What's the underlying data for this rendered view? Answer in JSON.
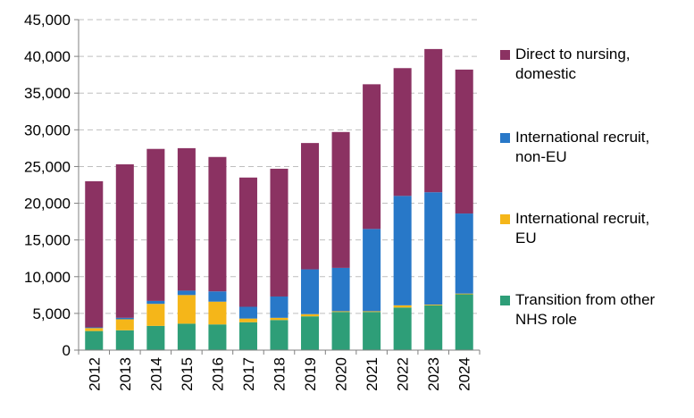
{
  "chart_data": {
    "type": "bar",
    "stacked": true,
    "categories": [
      "2012",
      "2013",
      "2014",
      "2015",
      "2016",
      "2017",
      "2018",
      "2019",
      "2020",
      "2021",
      "2022",
      "2023",
      "2024"
    ],
    "ylim": [
      0,
      45000
    ],
    "yticks": [
      "0",
      "5,000",
      "10,000",
      "15,000",
      "20,000",
      "25,000",
      "30,000",
      "35,000",
      "40,000",
      "45,000"
    ],
    "grid": "horizontal dashed",
    "legend_position": "right",
    "series": [
      {
        "name": "Transition from other NHS role",
        "color": "#2e9e78",
        "values": [
          2600,
          2700,
          3300,
          3600,
          3500,
          3800,
          4100,
          4600,
          5200,
          5200,
          5800,
          6100,
          7600
        ]
      },
      {
        "name": "International recruit, EU",
        "color": "#f5b619",
        "values": [
          400,
          1500,
          3000,
          3900,
          3100,
          500,
          300,
          300,
          100,
          100,
          300,
          100,
          100
        ]
      },
      {
        "name": "International recruit, non-EU",
        "color": "#2878c8",
        "values": [
          100,
          200,
          400,
          600,
          1400,
          1600,
          2900,
          6100,
          5900,
          11200,
          14900,
          15300,
          10900
        ]
      },
      {
        "name": "Direct to nursing, domestic",
        "color": "#8b3262",
        "values": [
          19900,
          20900,
          20700,
          19400,
          18300,
          17600,
          17400,
          17200,
          18500,
          19700,
          17400,
          19500,
          19600
        ]
      }
    ]
  },
  "legend": [
    {
      "line1": "Direct to nursing,",
      "line2": "domestic",
      "color": "#8b3262"
    },
    {
      "line1": "International recruit,",
      "line2": "non-EU",
      "color": "#2878c8"
    },
    {
      "line1": "International recruit,",
      "line2": "EU",
      "color": "#f5b619"
    },
    {
      "line1": "Transition from other",
      "line2": "NHS role",
      "color": "#2e9e78"
    }
  ]
}
